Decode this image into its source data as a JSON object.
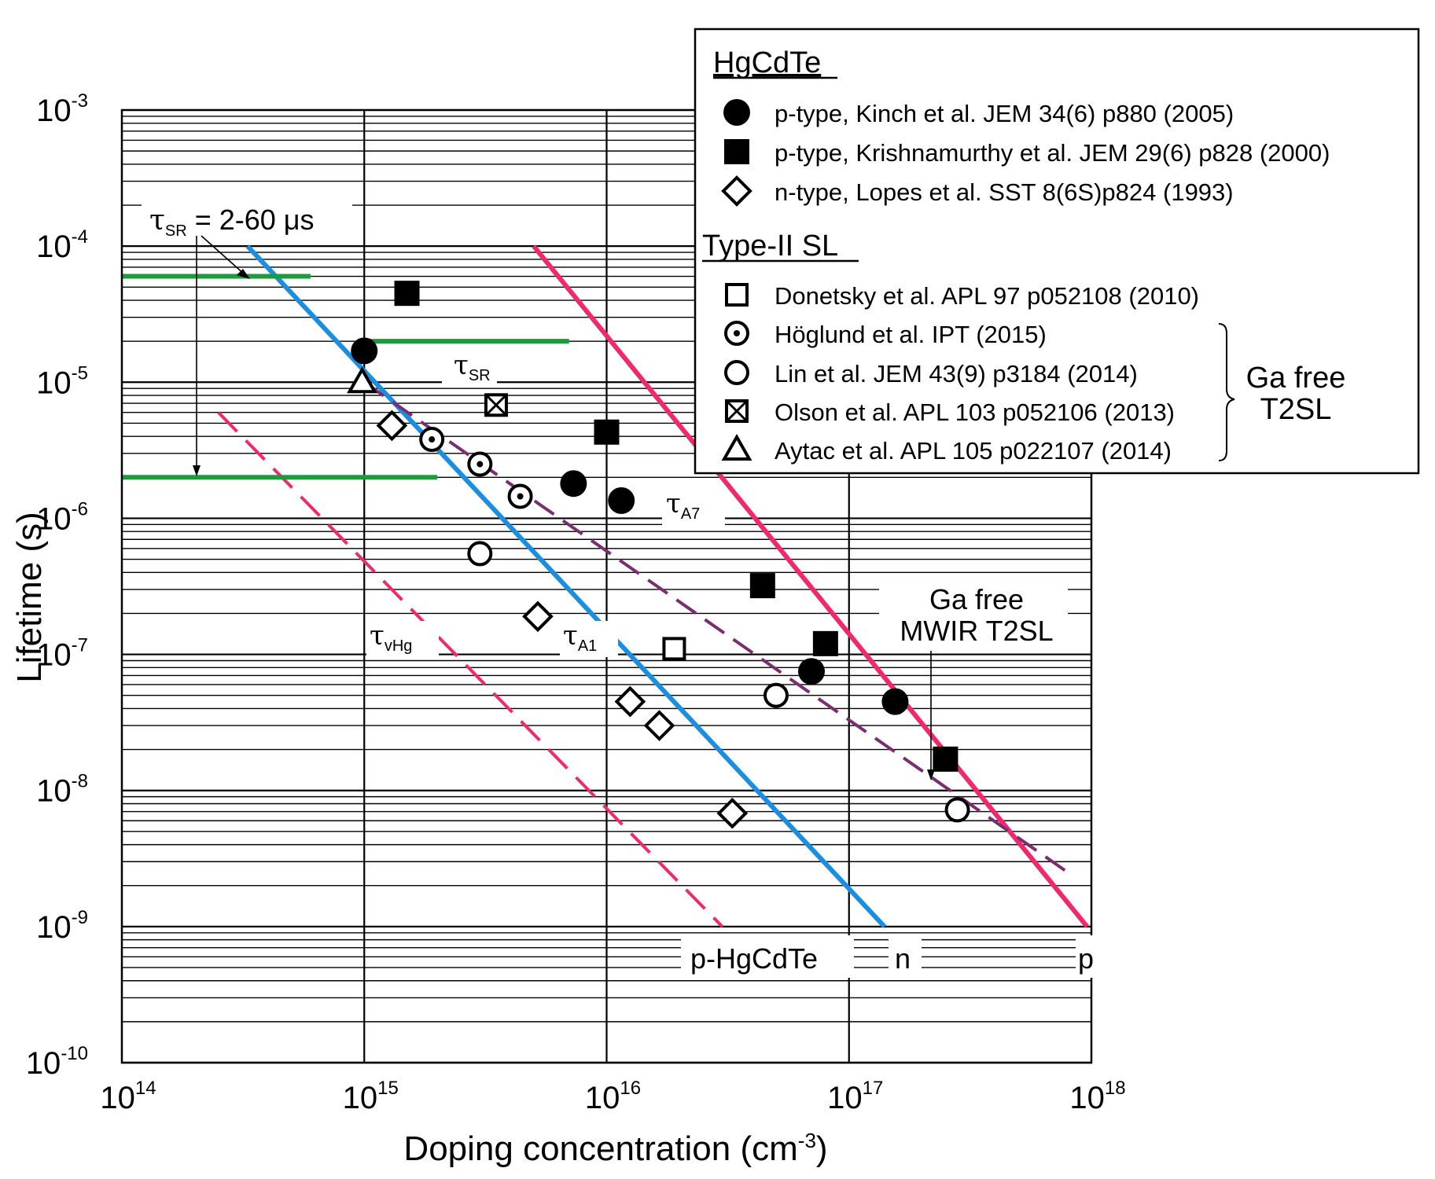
{
  "chart_data": {
    "type": "scatter",
    "xlabel": "Doping concentration (cm",
    "xlabel_sup": "-3",
    "xlabel_tail": ")",
    "ylabel": "Lifetime (s)",
    "x_scale": "log",
    "y_scale": "log",
    "xlim": [
      100000000000000.0,
      1e+18
    ],
    "ylim": [
      1e-10,
      0.001
    ],
    "x_ticks": [
      {
        "base": "10",
        "exp": "14",
        "value": 100000000000000.0
      },
      {
        "base": "10",
        "exp": "15",
        "value": 1000000000000000.0
      },
      {
        "base": "10",
        "exp": "16",
        "value": 1e+16
      },
      {
        "base": "10",
        "exp": "17",
        "value": 1e+17
      },
      {
        "base": "10",
        "exp": "18",
        "value": 1e+18
      }
    ],
    "y_ticks": [
      {
        "base": "10",
        "exp": "-3",
        "value": 0.001
      },
      {
        "base": "10",
        "exp": "-4",
        "value": 0.0001
      },
      {
        "base": "10",
        "exp": "-5",
        "value": 1e-05
      },
      {
        "base": "10",
        "exp": "-6",
        "value": 1e-06
      },
      {
        "base": "10",
        "exp": "-7",
        "value": 1e-07
      },
      {
        "base": "10",
        "exp": "-8",
        "value": 1e-08
      },
      {
        "base": "10",
        "exp": "-9",
        "value": 1e-09
      },
      {
        "base": "10",
        "exp": "-10",
        "value": 1e-10
      }
    ],
    "grid": true,
    "lines": [
      {
        "name": "tau_A1",
        "color": "#1b8ee0",
        "style": "solid",
        "points": [
          [
            330000000000000.0,
            0.0001
          ],
          [
            1.4e+17,
            1e-09
          ]
        ]
      },
      {
        "name": "tau_A7",
        "color": "#f0286e",
        "style": "solid",
        "points": [
          [
            5000000000000000.0,
            0.0001
          ],
          [
            9.6e+17,
            1e-09
          ]
        ]
      },
      {
        "name": "tau_vHg",
        "color": "#f0286e",
        "style": "dashed",
        "points": [
          [
            250000000000000.0,
            6e-06
          ],
          [
            3e+16,
            1e-09
          ]
        ]
      },
      {
        "name": "Ga free MWIR T2SL",
        "color": "#7a2e70",
        "style": "dashed",
        "points": [
          [
            1000000000000000.0,
            1e-05
          ],
          [
            8e+17,
            2.5e-09
          ]
        ]
      },
      {
        "name": "tau_SR 60us",
        "color": "#1a9b3c",
        "style": "solid",
        "points": [
          [
            100000000000000.0,
            6e-05
          ],
          [
            600000000000000.0,
            6e-05
          ]
        ]
      },
      {
        "name": "tau_SR 20us",
        "color": "#1a9b3c",
        "style": "solid",
        "points": [
          [
            1000000000000000.0,
            2e-05
          ],
          [
            7000000000000000.0,
            2e-05
          ]
        ]
      },
      {
        "name": "tau_SR 2us",
        "color": "#1a9b3c",
        "style": "solid",
        "points": [
          [
            100000000000000.0,
            2e-06
          ],
          [
            2000000000000000.0,
            2e-06
          ]
        ]
      }
    ],
    "series": [
      {
        "name": "p-type, Kinch et al. JEM 34(6) p880 (2005)",
        "marker": "filled-circle",
        "points": [
          [
            1000000000000000.0,
            1.7e-05
          ],
          [
            7300000000000000.0,
            1.8e-06
          ],
          [
            1.15e+16,
            1.35e-06
          ],
          [
            7e+16,
            7.5e-08
          ],
          [
            1.55e+17,
            4.5e-08
          ]
        ]
      },
      {
        "name": "p-type, Krishnamurthy et al. JEM 29(6) p828 (2000)",
        "marker": "filled-square",
        "points": [
          [
            1500000000000000.0,
            4.5e-05
          ],
          [
            1e+16,
            4.3e-06
          ],
          [
            4.4e+16,
            3.2e-07
          ],
          [
            8e+16,
            1.2e-07
          ],
          [
            2.5e+17,
            1.7e-08
          ]
        ]
      },
      {
        "name": "n-type, Lopes et al. SST 8(6S)p824 (1993)",
        "marker": "open-diamond",
        "points": [
          [
            1300000000000000.0,
            4.8e-06
          ],
          [
            5200000000000000.0,
            1.9e-07
          ],
          [
            1.25e+16,
            4.5e-08
          ],
          [
            1.65e+16,
            3e-08
          ],
          [
            3.3e+16,
            6.8e-09
          ]
        ]
      },
      {
        "name": "Donetsky et al. APL 97 p052108 (2010)",
        "marker": "open-square",
        "points": [
          [
            1.9e+16,
            1.1e-07
          ]
        ]
      },
      {
        "name": "Höglund et al. IPT (2015)",
        "marker": "dotted-circle",
        "points": [
          [
            1900000000000000.0,
            3.8e-06
          ],
          [
            3000000000000000.0,
            2.5e-06
          ],
          [
            4400000000000000.0,
            1.45e-06
          ]
        ]
      },
      {
        "name": "Lin et al. JEM 43(9) p3184 (2014)",
        "marker": "open-circle",
        "points": [
          [
            3000000000000000.0,
            5.5e-07
          ],
          [
            5e+16,
            5e-08
          ],
          [
            2.8e+17,
            7.2e-09
          ]
        ]
      },
      {
        "name": "Olson et al. APL 103 p052106 (2013)",
        "marker": "crossed-square",
        "points": [
          [
            3500000000000000.0,
            6.8e-06
          ]
        ]
      },
      {
        "name": "Aytac et al. APL 105 p022107 (2014)",
        "marker": "open-triangle",
        "points": [
          [
            980000000000000.0,
            1e-05
          ]
        ]
      }
    ],
    "annotations": {
      "tau_sr_label": {
        "sym": "τ",
        "sub": "SR",
        "text": " = 2-60 μs"
      },
      "tau_sr_mid": {
        "sym": "τ",
        "sub": "SR"
      },
      "tau_a7": {
        "sym": "τ",
        "sub": "A7"
      },
      "tau_a1": {
        "sym": "τ",
        "sub": "A1"
      },
      "tau_vhg": {
        "sym": "τ",
        "sub": "vHg"
      },
      "ga_free_line1": "Ga free",
      "ga_free_line2": "MWIR T2SL",
      "p_hgcdte": "p-HgCdTe",
      "n_label": "n",
      "p_label": "p"
    },
    "legend": {
      "position": "top-right",
      "group1_title": "HgCdTe",
      "group2_title": "Type-II SL",
      "brace_line1": "Ga free",
      "brace_line2": "T2SL",
      "entries": [
        {
          "marker": "filled-circle",
          "label": "p-type, Kinch et al. JEM 34(6) p880 (2005)"
        },
        {
          "marker": "filled-square",
          "label": "p-type, Krishnamurthy et al. JEM 29(6) p828 (2000)"
        },
        {
          "marker": "open-diamond",
          "label": "n-type, Lopes et al. SST 8(6S)p824 (1993)"
        },
        {
          "marker": "open-square",
          "label": "Donetsky et al. APL 97 p052108 (2010)"
        },
        {
          "marker": "dotted-circle",
          "label": "Höglund et al. IPT (2015)"
        },
        {
          "marker": "open-circle",
          "label": "Lin et al. JEM 43(9) p3184 (2014)"
        },
        {
          "marker": "crossed-square",
          "label": "Olson et al. APL 103 p052106 (2013)"
        },
        {
          "marker": "open-triangle",
          "label": "Aytac et al. APL 105 p022107 (2014)"
        }
      ]
    }
  }
}
